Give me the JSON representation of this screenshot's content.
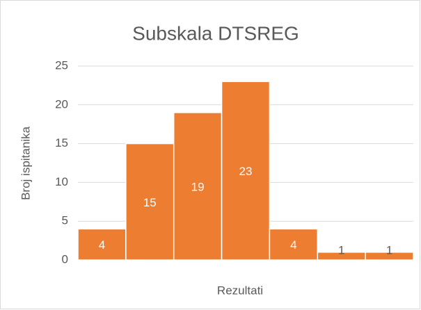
{
  "chart_data": {
    "type": "bar",
    "title": "Subskala DTSREG",
    "x_label": "Rezultati",
    "y_label": "Broj ispitanika",
    "categories": [
      null,
      null,
      null,
      null,
      null,
      null,
      null
    ],
    "values": [
      4,
      15,
      19,
      23,
      4,
      1,
      1
    ],
    "color": "#ed7d31",
    "ylim": [
      0,
      25
    ],
    "yticks": [
      0,
      5,
      10,
      15,
      20,
      25
    ],
    "grid": true
  }
}
